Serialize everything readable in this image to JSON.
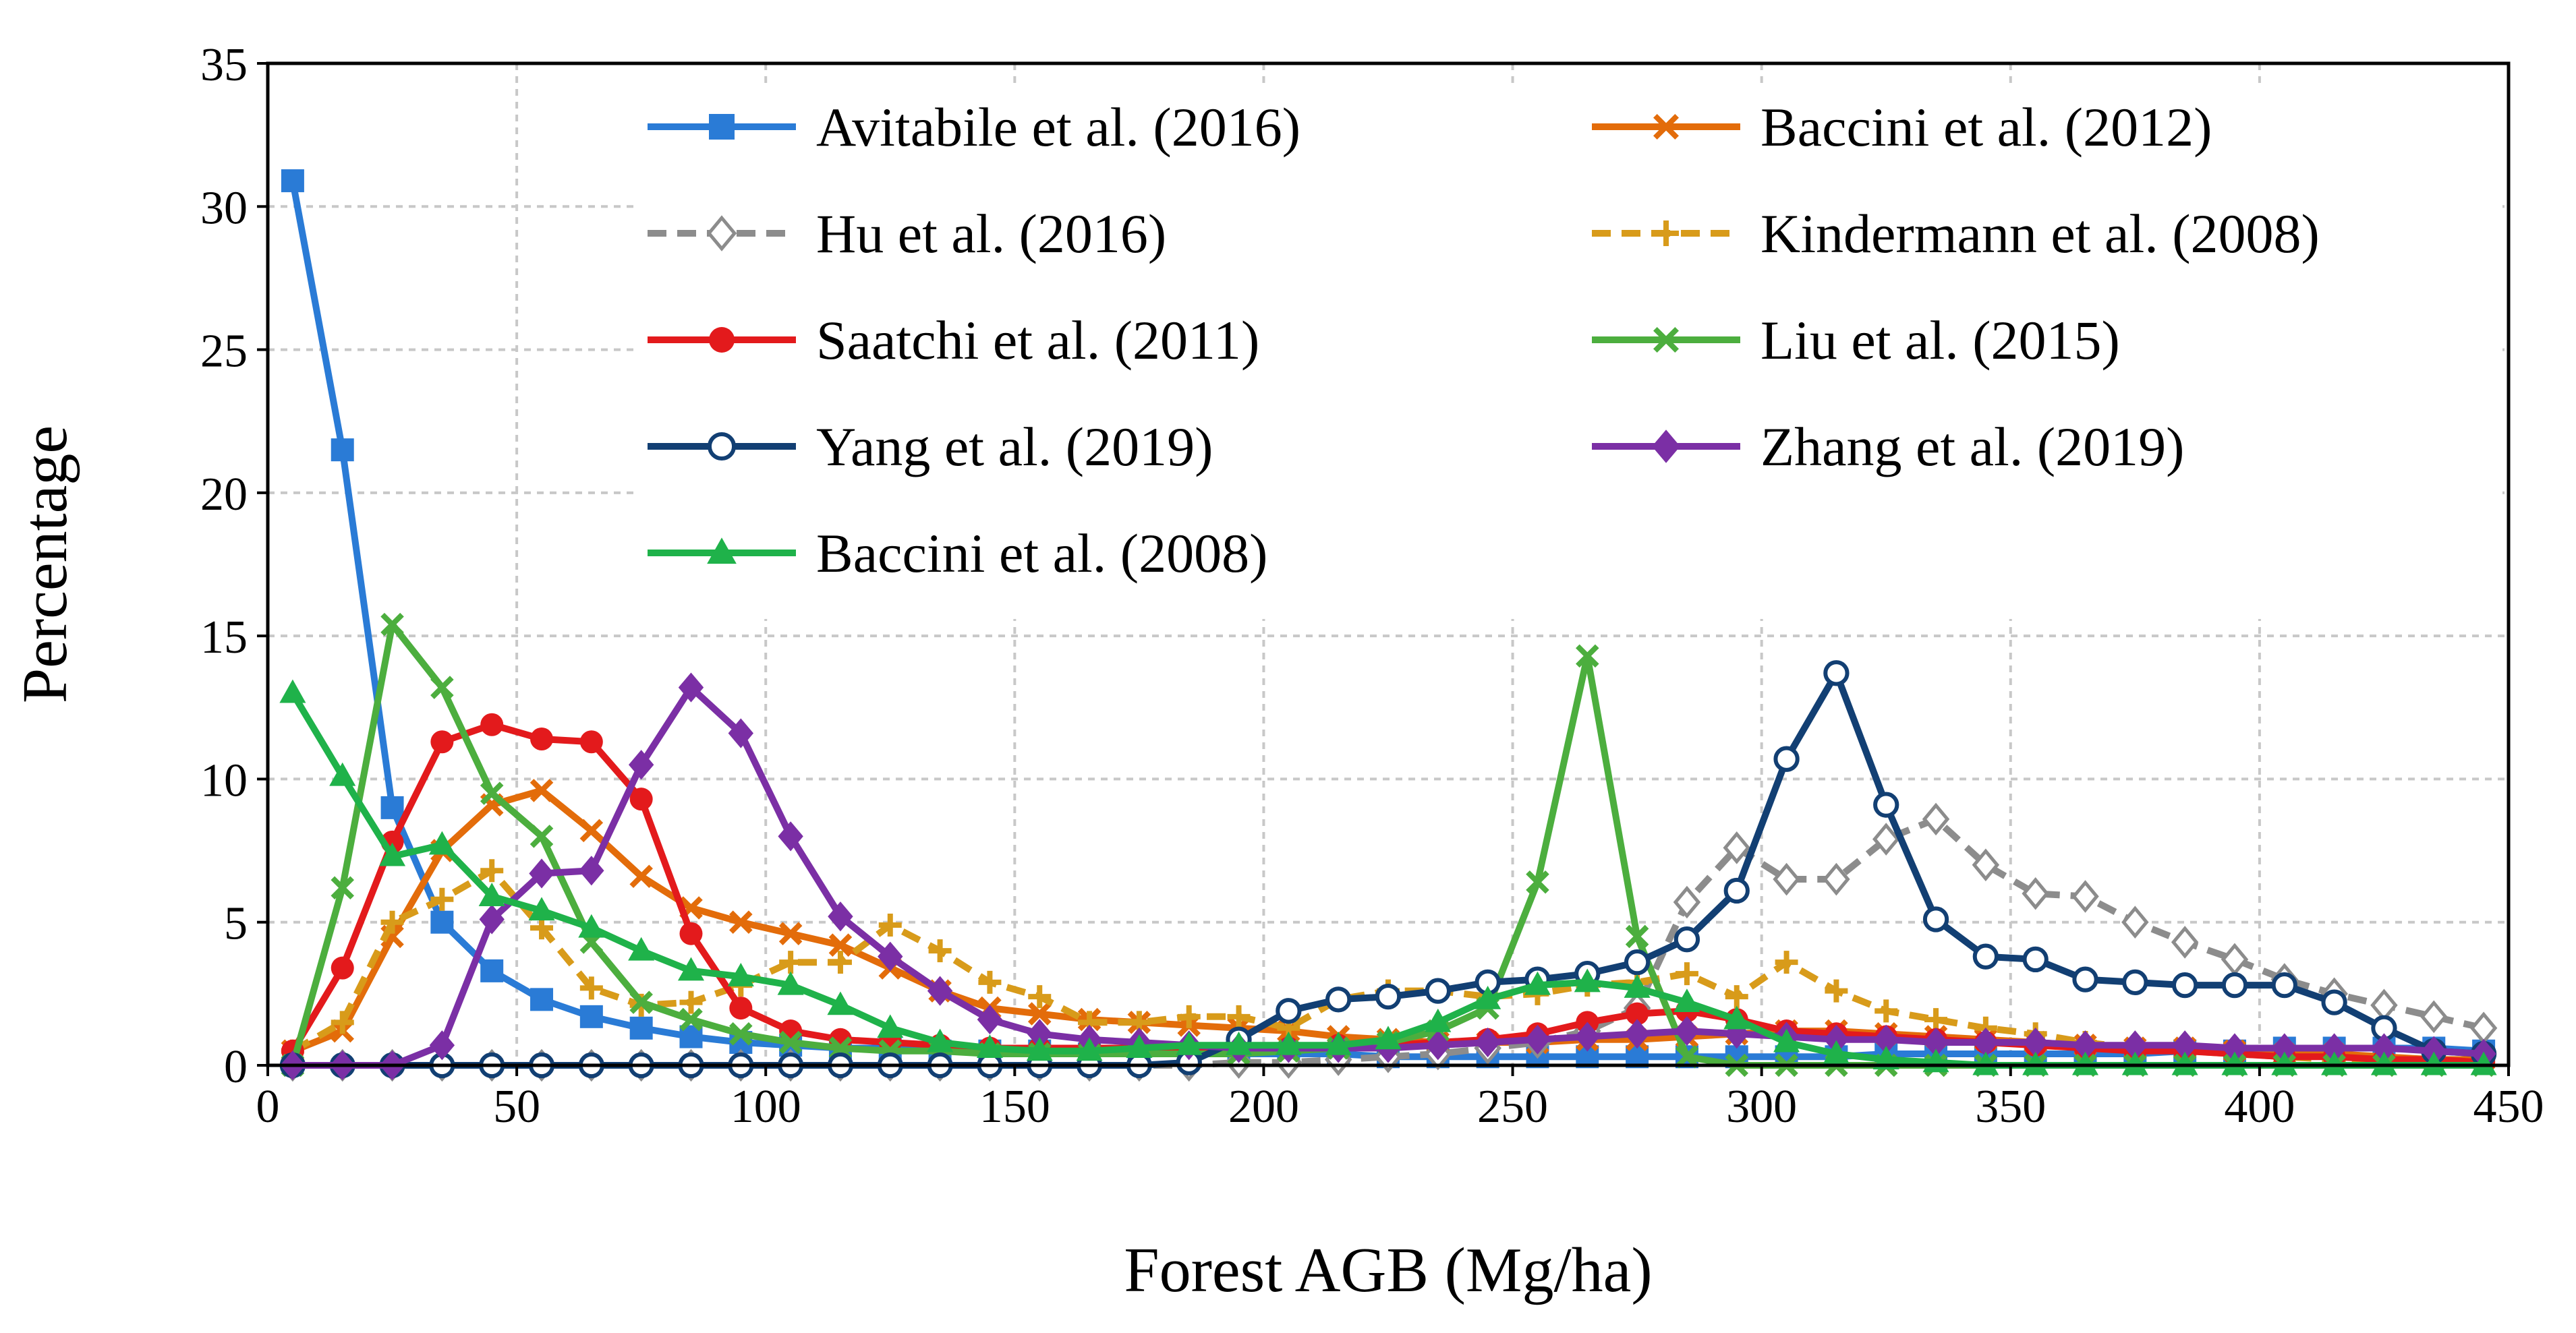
{
  "chart_data": {
    "type": "line",
    "title": "",
    "xlabel": "Forest AGB  (Mg/ha)",
    "ylabel": "Percentage",
    "xlim": [
      0,
      450
    ],
    "ylim": [
      0,
      35
    ],
    "xticks": [
      0,
      50,
      100,
      150,
      200,
      250,
      300,
      350,
      400,
      450
    ],
    "yticks": [
      0,
      5,
      10,
      15,
      20,
      25,
      30,
      35
    ],
    "grid": true,
    "legend_position": "top-center, two columns",
    "x": [
      5,
      15,
      25,
      35,
      45,
      55,
      65,
      75,
      85,
      95,
      105,
      115,
      125,
      135,
      145,
      155,
      165,
      175,
      185,
      195,
      205,
      215,
      225,
      235,
      245,
      255,
      265,
      275,
      285,
      295,
      305,
      315,
      325,
      335,
      345,
      355,
      365,
      375,
      385,
      395,
      405,
      415,
      425,
      435,
      445
    ],
    "series": [
      {
        "name": "Avitabile et al. (2016)",
        "color": "#2a7bd6",
        "marker": "square",
        "dash": "solid",
        "values": [
          30.9,
          21.5,
          9.0,
          5.0,
          3.3,
          2.3,
          1.7,
          1.3,
          1.0,
          0.8,
          0.7,
          0.6,
          0.6,
          0.5,
          0.5,
          0.5,
          0.4,
          0.4,
          0.4,
          0.4,
          0.4,
          0.4,
          0.3,
          0.3,
          0.3,
          0.3,
          0.3,
          0.3,
          0.3,
          0.3,
          0.3,
          0.3,
          0.4,
          0.4,
          0.4,
          0.4,
          0.4,
          0.4,
          0.5,
          0.5,
          0.6,
          0.6,
          0.6,
          0.6,
          0.5
        ]
      },
      {
        "name": "Baccini et al. (2012)",
        "color": "#e36c0a",
        "marker": "x",
        "dash": "solid",
        "values": [
          0.5,
          1.2,
          4.5,
          7.5,
          9.1,
          9.6,
          8.2,
          6.6,
          5.5,
          5.0,
          4.6,
          4.2,
          3.4,
          2.6,
          2.0,
          1.8,
          1.6,
          1.5,
          1.4,
          1.3,
          1.2,
          1.0,
          0.9,
          0.8,
          0.8,
          0.8,
          0.9,
          0.9,
          1.0,
          1.1,
          1.2,
          1.2,
          1.1,
          1.0,
          0.9,
          0.8,
          0.7,
          0.6,
          0.6,
          0.5,
          0.4,
          0.4,
          0.3,
          0.2,
          0.2
        ]
      },
      {
        "name": "Hu et al. (2016)",
        "color": "#8c8c8c",
        "marker": "diamond-open",
        "dash": "dashed",
        "values": [
          0.0,
          0.0,
          0.0,
          0.0,
          0.0,
          0.0,
          0.0,
          0.0,
          0.0,
          0.0,
          0.0,
          0.0,
          0.0,
          0.0,
          0.0,
          0.0,
          0.0,
          0.0,
          0.0,
          0.1,
          0.1,
          0.2,
          0.3,
          0.4,
          0.6,
          0.8,
          1.2,
          2.0,
          5.7,
          7.6,
          6.5,
          6.5,
          7.9,
          8.6,
          7.0,
          6.0,
          5.9,
          5.0,
          4.3,
          3.7,
          3.0,
          2.5,
          2.1,
          1.7,
          1.3
        ]
      },
      {
        "name": "Kindermann et al. (2008)",
        "color": "#d89b1a",
        "marker": "plus",
        "dash": "dashed",
        "values": [
          0.5,
          1.5,
          5.0,
          5.8,
          6.8,
          4.8,
          2.7,
          2.1,
          2.2,
          2.8,
          3.6,
          3.6,
          4.9,
          4.0,
          2.9,
          2.4,
          1.5,
          1.5,
          1.7,
          1.7,
          1.3,
          2.3,
          2.6,
          2.6,
          2.4,
          2.5,
          2.8,
          2.9,
          3.2,
          2.4,
          3.6,
          2.6,
          1.9,
          1.6,
          1.3,
          1.1,
          0.8,
          0.6,
          0.5,
          0.4,
          0.3,
          0.2,
          0.2,
          0.1,
          0.1
        ]
      },
      {
        "name": "Saatchi et al. (2011)",
        "color": "#e31a1c",
        "marker": "circle",
        "dash": "solid",
        "values": [
          0.5,
          3.4,
          7.8,
          11.3,
          11.9,
          11.4,
          11.3,
          9.3,
          4.6,
          2.0,
          1.2,
          0.9,
          0.8,
          0.7,
          0.6,
          0.6,
          0.6,
          0.6,
          0.6,
          0.6,
          0.6,
          0.7,
          0.7,
          0.8,
          0.9,
          1.1,
          1.5,
          1.8,
          1.9,
          1.6,
          1.2,
          1.1,
          1.0,
          0.9,
          0.8,
          0.7,
          0.6,
          0.5,
          0.5,
          0.4,
          0.3,
          0.3,
          0.2,
          0.2,
          0.1
        ]
      },
      {
        "name": "Liu et al. (2015)",
        "color": "#4cae3e",
        "marker": "x",
        "dash": "solid",
        "values": [
          0.0,
          6.2,
          15.4,
          13.2,
          9.5,
          8.0,
          4.3,
          2.2,
          1.6,
          1.1,
          0.8,
          0.6,
          0.5,
          0.5,
          0.4,
          0.4,
          0.4,
          0.4,
          0.4,
          0.4,
          0.5,
          0.6,
          0.8,
          1.2,
          2.0,
          6.4,
          14.3,
          4.5,
          0.3,
          0.0,
          0.0,
          0.0,
          0.0,
          0.0,
          0.0,
          0.0,
          0.0,
          0.0,
          0.0,
          0.0,
          0.0,
          0.0,
          0.0,
          0.0,
          0.0
        ]
      },
      {
        "name": "Yang et al. (2019)",
        "color": "#123f73",
        "marker": "circle-open",
        "dash": "solid",
        "values": [
          0.0,
          0.0,
          0.0,
          0.0,
          0.0,
          0.0,
          0.0,
          0.0,
          0.0,
          0.0,
          0.0,
          0.0,
          0.0,
          0.0,
          0.0,
          0.0,
          0.0,
          0.0,
          0.1,
          0.9,
          1.9,
          2.3,
          2.4,
          2.6,
          2.9,
          3.0,
          3.2,
          3.6,
          4.4,
          6.1,
          10.7,
          13.7,
          9.1,
          5.1,
          3.8,
          3.7,
          3.0,
          2.9,
          2.8,
          2.8,
          2.8,
          2.2,
          1.3,
          0.5,
          0.4
        ]
      },
      {
        "name": "Zhang et al. (2019)",
        "color": "#7b2fa5",
        "marker": "diamond",
        "dash": "solid",
        "values": [
          0.0,
          0.0,
          0.0,
          0.7,
          5.1,
          6.7,
          6.8,
          10.5,
          13.2,
          11.6,
          8.0,
          5.2,
          3.8,
          2.6,
          1.6,
          1.1,
          0.9,
          0.8,
          0.7,
          0.6,
          0.6,
          0.6,
          0.6,
          0.7,
          0.8,
          0.9,
          1.0,
          1.1,
          1.2,
          1.1,
          1.0,
          0.9,
          0.9,
          0.8,
          0.8,
          0.8,
          0.7,
          0.7,
          0.7,
          0.6,
          0.6,
          0.6,
          0.6,
          0.5,
          0.4
        ]
      },
      {
        "name": "Baccini et al. (2008)",
        "color": "#1fb24a",
        "marker": "triangle",
        "dash": "solid",
        "values": [
          13.0,
          10.1,
          7.3,
          7.7,
          5.9,
          5.4,
          4.8,
          4.0,
          3.3,
          3.1,
          2.8,
          2.1,
          1.3,
          0.8,
          0.6,
          0.5,
          0.5,
          0.6,
          0.7,
          0.7,
          0.7,
          0.7,
          0.9,
          1.5,
          2.3,
          2.8,
          2.9,
          2.7,
          2.2,
          1.6,
          0.8,
          0.4,
          0.2,
          0.1,
          0.0,
          0.0,
          0.0,
          0.0,
          0.0,
          0.0,
          0.0,
          0.0,
          0.0,
          0.0,
          0.0
        ]
      }
    ]
  }
}
